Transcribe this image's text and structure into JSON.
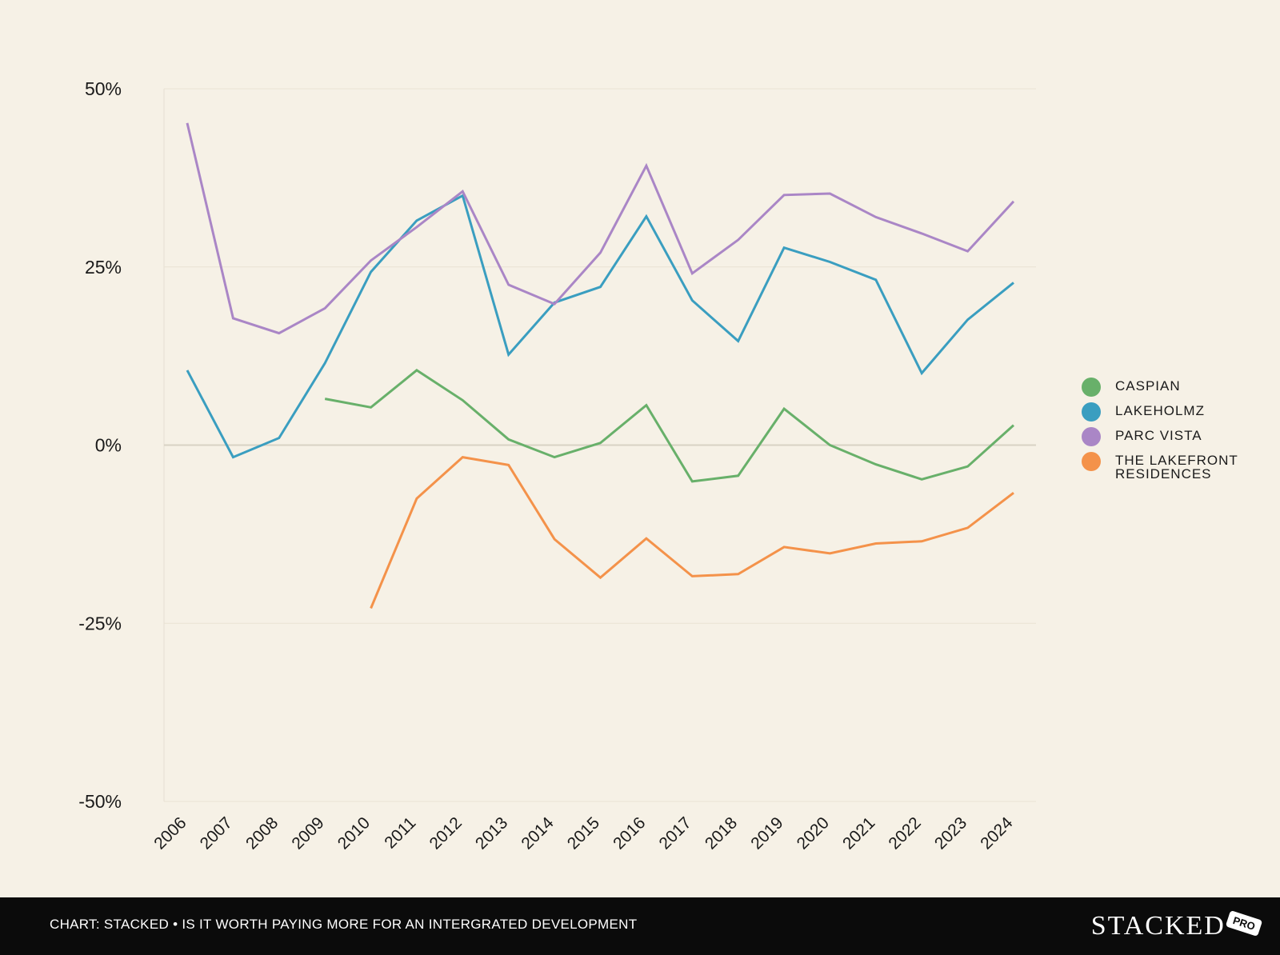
{
  "chart_data": {
    "type": "line",
    "x": [
      "2006",
      "2007",
      "2008",
      "2009",
      "2010",
      "2011",
      "2012",
      "2013",
      "2014",
      "2015",
      "2016",
      "2017",
      "2018",
      "2019",
      "2020",
      "2021",
      "2022",
      "2023",
      "2024"
    ],
    "ylim": [
      -50,
      50
    ],
    "yticks": [
      50,
      25,
      0,
      -25,
      -50
    ],
    "ytick_labels": [
      "50%",
      "25%",
      "0%",
      "-25%",
      "-50%"
    ],
    "grid": true,
    "legend_position": "right",
    "series": [
      {
        "name": "CASPIAN",
        "color": "#68b06a",
        "values": [
          null,
          null,
          null,
          6.5,
          5.3,
          10.5,
          6.3,
          0.8,
          -1.7,
          0.3,
          5.6,
          -5.1,
          -4.3,
          5.1,
          0.0,
          -2.7,
          -4.8,
          -3.0,
          2.8
        ]
      },
      {
        "name": "LAKEHOLMZ",
        "color": "#3a9ec0",
        "values": [
          10.5,
          -1.7,
          1.0,
          11.5,
          24.3,
          31.5,
          35.0,
          12.7,
          20.0,
          22.2,
          32.1,
          20.3,
          14.6,
          27.7,
          25.7,
          23.2,
          10.1,
          17.6,
          22.8
        ]
      },
      {
        "name": "PARC VISTA",
        "color": "#aa86c6",
        "values": [
          45.2,
          17.8,
          15.7,
          19.2,
          25.9,
          30.6,
          35.6,
          22.5,
          19.8,
          27.0,
          39.2,
          24.1,
          28.8,
          35.1,
          35.3,
          32.0,
          29.7,
          27.2,
          34.2
        ]
      },
      {
        "name": "THE LAKEFRONT\nRESIDENCES",
        "color": "#f4924a",
        "values": [
          null,
          null,
          null,
          null,
          -22.9,
          -7.5,
          -1.7,
          -2.8,
          -13.2,
          -18.6,
          -13.1,
          -18.4,
          -18.1,
          -14.3,
          -15.2,
          -13.8,
          -13.5,
          -11.6,
          -6.7
        ]
      }
    ]
  },
  "footer": {
    "caption": "CHART: STACKED • IS IT WORTH PAYING MORE FOR AN INTERGRATED DEVELOPMENT",
    "logo_text": "STACKED",
    "logo_badge": "PRO"
  }
}
